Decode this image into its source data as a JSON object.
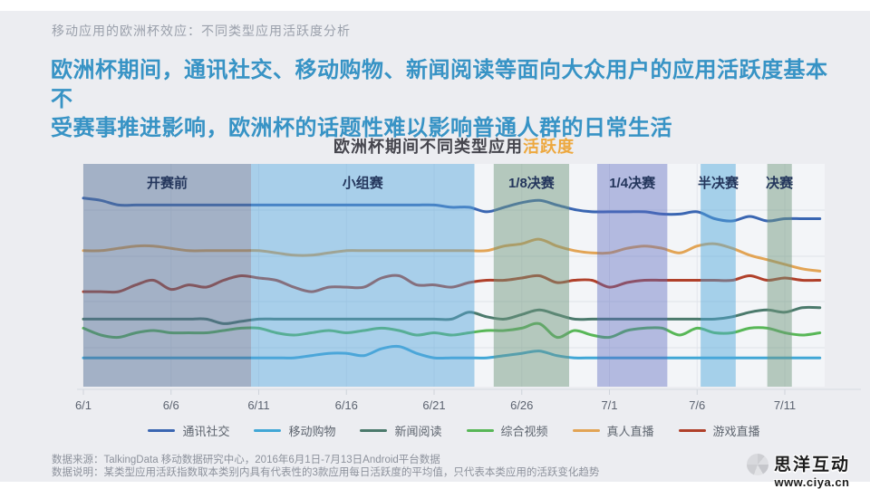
{
  "kicker": "移动应用的欧洲杯效应：不同类型应用活跃度分析",
  "headline": {
    "line1": "欧洲杯期间，通讯社交、移动购物、新闻阅读等面向大众用户的应用活跃度基本不",
    "line2": "受赛事推进影响，欧洲杯的话题性难以影响普通人群的日常生活",
    "color": "#3793c5"
  },
  "chart": {
    "title_main": "欧洲杯期间不同类型应用",
    "title_accent": "活跃度",
    "accent_color": "#eda83f"
  },
  "chart_data": {
    "type": "line",
    "x": [
      "6/1",
      "6/2",
      "6/3",
      "6/4",
      "6/5",
      "6/6",
      "6/7",
      "6/8",
      "6/9",
      "6/10",
      "6/11",
      "6/12",
      "6/13",
      "6/14",
      "6/15",
      "6/16",
      "6/17",
      "6/18",
      "6/19",
      "6/20",
      "6/21",
      "6/22",
      "6/23",
      "6/24",
      "6/25",
      "6/26",
      "6/27",
      "6/28",
      "6/29",
      "6/30",
      "7/1",
      "7/2",
      "7/3",
      "7/4",
      "7/5",
      "7/6",
      "7/7",
      "7/8",
      "7/9",
      "7/10",
      "7/11",
      "7/12",
      "7/13"
    ],
    "x_tick_labels": [
      "6/1",
      "6/6",
      "6/11",
      "6/16",
      "6/21",
      "6/26",
      "7/1",
      "7/6",
      "7/11"
    ],
    "x_tick_days": [
      0,
      5,
      10,
      15,
      20,
      25,
      30,
      35,
      40
    ],
    "ylim": [
      0,
      100
    ],
    "grid": "horizontal-faint",
    "legend_position": "bottom",
    "series": [
      {
        "name": "通讯社交",
        "color": "#3a66b2",
        "values": [
          85,
          84,
          82,
          82,
          82,
          82,
          82,
          82,
          82,
          82,
          82,
          82,
          82,
          82,
          82,
          82,
          82,
          82,
          82,
          82,
          82,
          81,
          81,
          79,
          81,
          83,
          84,
          82,
          80,
          79,
          79,
          79,
          79,
          78,
          78,
          79,
          76,
          75,
          77,
          75,
          76,
          76,
          76
        ]
      },
      {
        "name": "移动购物",
        "color": "#41a7d6",
        "values": [
          15,
          15,
          15,
          15,
          15,
          15,
          15,
          15,
          15,
          15,
          15,
          15,
          15,
          16,
          17,
          17,
          16,
          19,
          20,
          17,
          15,
          15,
          15,
          15,
          16,
          17,
          18,
          16,
          15,
          15,
          15,
          15,
          15,
          15,
          15,
          15,
          15,
          15,
          15,
          15,
          15,
          15,
          15
        ]
      },
      {
        "name": "新闻阅读",
        "color": "#4b7a6c",
        "values": [
          32,
          32,
          32,
          32,
          32,
          32,
          32,
          32,
          30,
          31,
          32,
          32,
          32,
          32,
          32,
          32,
          32,
          32,
          32,
          32,
          32,
          32,
          35,
          33,
          32,
          34,
          36,
          34,
          32,
          32,
          32,
          32,
          32,
          32,
          32,
          32,
          32,
          33,
          35,
          36,
          35,
          37,
          37
        ]
      },
      {
        "name": "综合视频",
        "color": "#58b757",
        "values": [
          28,
          25,
          24,
          26,
          27,
          26,
          26,
          26,
          27,
          28,
          28,
          26,
          25,
          26,
          27,
          26,
          27,
          28,
          27,
          25,
          26,
          25,
          26,
          27,
          27,
          28,
          30,
          24,
          27,
          25,
          24,
          27,
          28,
          28,
          25,
          28,
          26,
          26,
          28,
          28,
          26,
          25,
          26
        ]
      },
      {
        "name": "真人直播",
        "color": "#e2a455",
        "values": [
          62,
          62,
          63,
          64,
          64,
          63,
          62,
          62,
          62,
          62,
          62,
          61,
          60,
          60,
          61,
          62,
          62,
          62,
          62,
          62,
          62,
          62,
          62,
          62,
          64,
          65,
          67,
          64,
          62,
          61,
          61,
          63,
          64,
          63,
          61,
          64,
          65,
          63,
          60,
          58,
          56,
          54,
          53
        ]
      },
      {
        "name": "游戏直播",
        "color": "#b0402a",
        "values": [
          44,
          44,
          44,
          47,
          49,
          45,
          47,
          46,
          49,
          51,
          50,
          49,
          46,
          44,
          46,
          46,
          46,
          50,
          51,
          47,
          47,
          46,
          48,
          49,
          49,
          50,
          51,
          48,
          49,
          49,
          46,
          48,
          49,
          49,
          49,
          49,
          49,
          49,
          51,
          49,
          50,
          49,
          49
        ]
      }
    ],
    "phases": [
      {
        "label": "开赛前",
        "from": 0,
        "to": 9.56,
        "color": "rgba(84,110,148,0.50)"
      },
      {
        "label": "小组赛",
        "from": 9.56,
        "to": 22.3,
        "color": "rgba(86,166,220,0.48)"
      },
      {
        "label": "1/8决赛",
        "from": 23.4,
        "to": 27.7,
        "color": "rgba(110,150,125,0.48)"
      },
      {
        "label": "1/4决赛",
        "from": 29.3,
        "to": 33.3,
        "color": "rgba(90,106,190,0.42)"
      },
      {
        "label": "半决赛",
        "from": 35.2,
        "to": 37.2,
        "color": "rgba(80,168,220,0.48)"
      },
      {
        "label": "决赛",
        "from": 39.0,
        "to": 40.4,
        "color": "rgba(110,150,125,0.48)"
      }
    ],
    "phase_label_color": "#24365c"
  },
  "footer": {
    "source": "数据来源：TalkingData 移动数据研究中心，2016年6月1日-7月13日Android平台数据",
    "note": "数据说明：某类型应用活跃指数取本类别内具有代表性的3款应用每日活跃度的平均值，只代表本类应用的活跃变化趋势"
  },
  "logo": {
    "name": "思洋互动",
    "site": "www.ciya.cn"
  }
}
